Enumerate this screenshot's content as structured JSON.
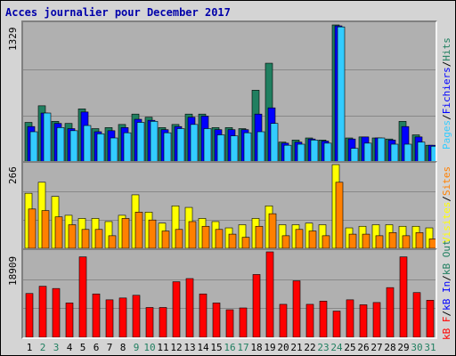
{
  "title": "Acces journalier pour December 2017",
  "colors": {
    "pages": "#33ccff",
    "fichiers": "#0000ff",
    "hits": "#207f60",
    "visites": "#ffff00",
    "sites": "#ff8000",
    "kb": "#ff0000",
    "weekday_label": "#000000",
    "weekend_label": "#207f60",
    "title": "#0000aa"
  },
  "legend": {
    "top": [
      {
        "text": "Pages",
        "color": "#33ccff"
      },
      {
        "text": "/",
        "color": "#000000"
      },
      {
        "text": "Fichiers",
        "color": "#0000ff"
      },
      {
        "text": "/",
        "color": "#000000"
      },
      {
        "text": "Hits",
        "color": "#207f60"
      }
    ],
    "middle": [
      {
        "text": "Visites",
        "color": "#ffff00"
      },
      {
        "text": "/",
        "color": "#000000"
      },
      {
        "text": "Sites",
        "color": "#ff8000"
      }
    ],
    "bottom": [
      {
        "text": "kB F",
        "color": "#ff0000"
      },
      {
        "text": "/",
        "color": "#000000"
      },
      {
        "text": "kB In",
        "color": "#0000ff"
      },
      {
        "text": "/",
        "color": "#000000"
      },
      {
        "text": "kB Out",
        "color": "#207f60"
      }
    ]
  },
  "chart_data": [
    {
      "type": "bar",
      "name": "hits-files-pages",
      "ymax_label": "1329",
      "ylim": [
        0,
        1329
      ],
      "categories": [
        "1",
        "2",
        "3",
        "4",
        "5",
        "6",
        "7",
        "8",
        "9",
        "10",
        "11",
        "12",
        "13",
        "14",
        "15",
        "16",
        "17",
        "18",
        "19",
        "20",
        "21",
        "22",
        "23",
        "24",
        "25",
        "26",
        "27",
        "28",
        "29",
        "30",
        "31"
      ],
      "series": [
        {
          "name": "Hits",
          "values": [
            390,
            550,
            400,
            380,
            520,
            330,
            340,
            370,
            470,
            440,
            340,
            370,
            470,
            470,
            340,
            340,
            330,
            700,
            960,
            200,
            220,
            240,
            220,
            1329,
            240,
            250,
            240,
            230,
            400,
            270,
            170
          ]
        },
        {
          "name": "Fichiers",
          "values": [
            350,
            480,
            380,
            330,
            490,
            300,
            310,
            340,
            420,
            410,
            320,
            350,
            440,
            450,
            320,
            320,
            320,
            470,
            530,
            190,
            200,
            230,
            210,
            1320,
            230,
            250,
            240,
            220,
            350,
            250,
            170
          ]
        },
        {
          "name": "Pages",
          "values": [
            300,
            480,
            340,
            310,
            360,
            280,
            240,
            290,
            390,
            400,
            290,
            330,
            370,
            330,
            270,
            260,
            290,
            300,
            380,
            170,
            180,
            220,
            190,
            1310,
            140,
            190,
            240,
            180,
            180,
            200,
            160
          ]
        }
      ]
    },
    {
      "type": "bar",
      "name": "visits-sites",
      "ymax_label": "266",
      "ylim": [
        0,
        266
      ],
      "categories": [
        "1",
        "2",
        "3",
        "4",
        "5",
        "6",
        "7",
        "8",
        "9",
        "10",
        "11",
        "12",
        "13",
        "14",
        "15",
        "16",
        "17",
        "18",
        "19",
        "20",
        "21",
        "22",
        "23",
        "24",
        "25",
        "26",
        "27",
        "28",
        "29",
        "30",
        "31"
      ],
      "series": [
        {
          "name": "Visites",
          "values": [
            175,
            210,
            165,
            105,
            95,
            95,
            85,
            105,
            170,
            115,
            80,
            135,
            130,
            95,
            85,
            65,
            75,
            95,
            135,
            75,
            75,
            80,
            75,
            266,
            65,
            70,
            75,
            75,
            70,
            70,
            65
          ]
        },
        {
          "name": "Sites",
          "values": [
            125,
            120,
            100,
            75,
            60,
            60,
            40,
            95,
            115,
            90,
            55,
            60,
            85,
            70,
            60,
            45,
            35,
            70,
            110,
            40,
            60,
            55,
            40,
            210,
            45,
            45,
            40,
            50,
            40,
            50,
            30
          ]
        }
      ]
    },
    {
      "type": "bar",
      "name": "kb-transfer",
      "ymax_label": "18909",
      "ylim": [
        0,
        18909
      ],
      "categories": [
        "1",
        "2",
        "3",
        "4",
        "5",
        "6",
        "7",
        "8",
        "9",
        "10",
        "11",
        "12",
        "13",
        "14",
        "15",
        "16",
        "17",
        "18",
        "19",
        "20",
        "21",
        "22",
        "23",
        "24",
        "25",
        "26",
        "27",
        "28",
        "29",
        "30",
        "31"
      ],
      "series": [
        {
          "name": "kB F",
          "values": [
            9700,
            11300,
            10800,
            7600,
            17800,
            9600,
            8300,
            8700,
            9300,
            6600,
            6600,
            12300,
            13000,
            9600,
            7600,
            6100,
            6500,
            13900,
            18909,
            7300,
            12500,
            7300,
            8000,
            5800,
            8300,
            7200,
            7700,
            11000,
            17800,
            9900,
            8200
          ]
        }
      ]
    }
  ],
  "weekend_days": [
    "2",
    "3",
    "9",
    "10",
    "16",
    "17",
    "23",
    "24",
    "30",
    "31"
  ]
}
